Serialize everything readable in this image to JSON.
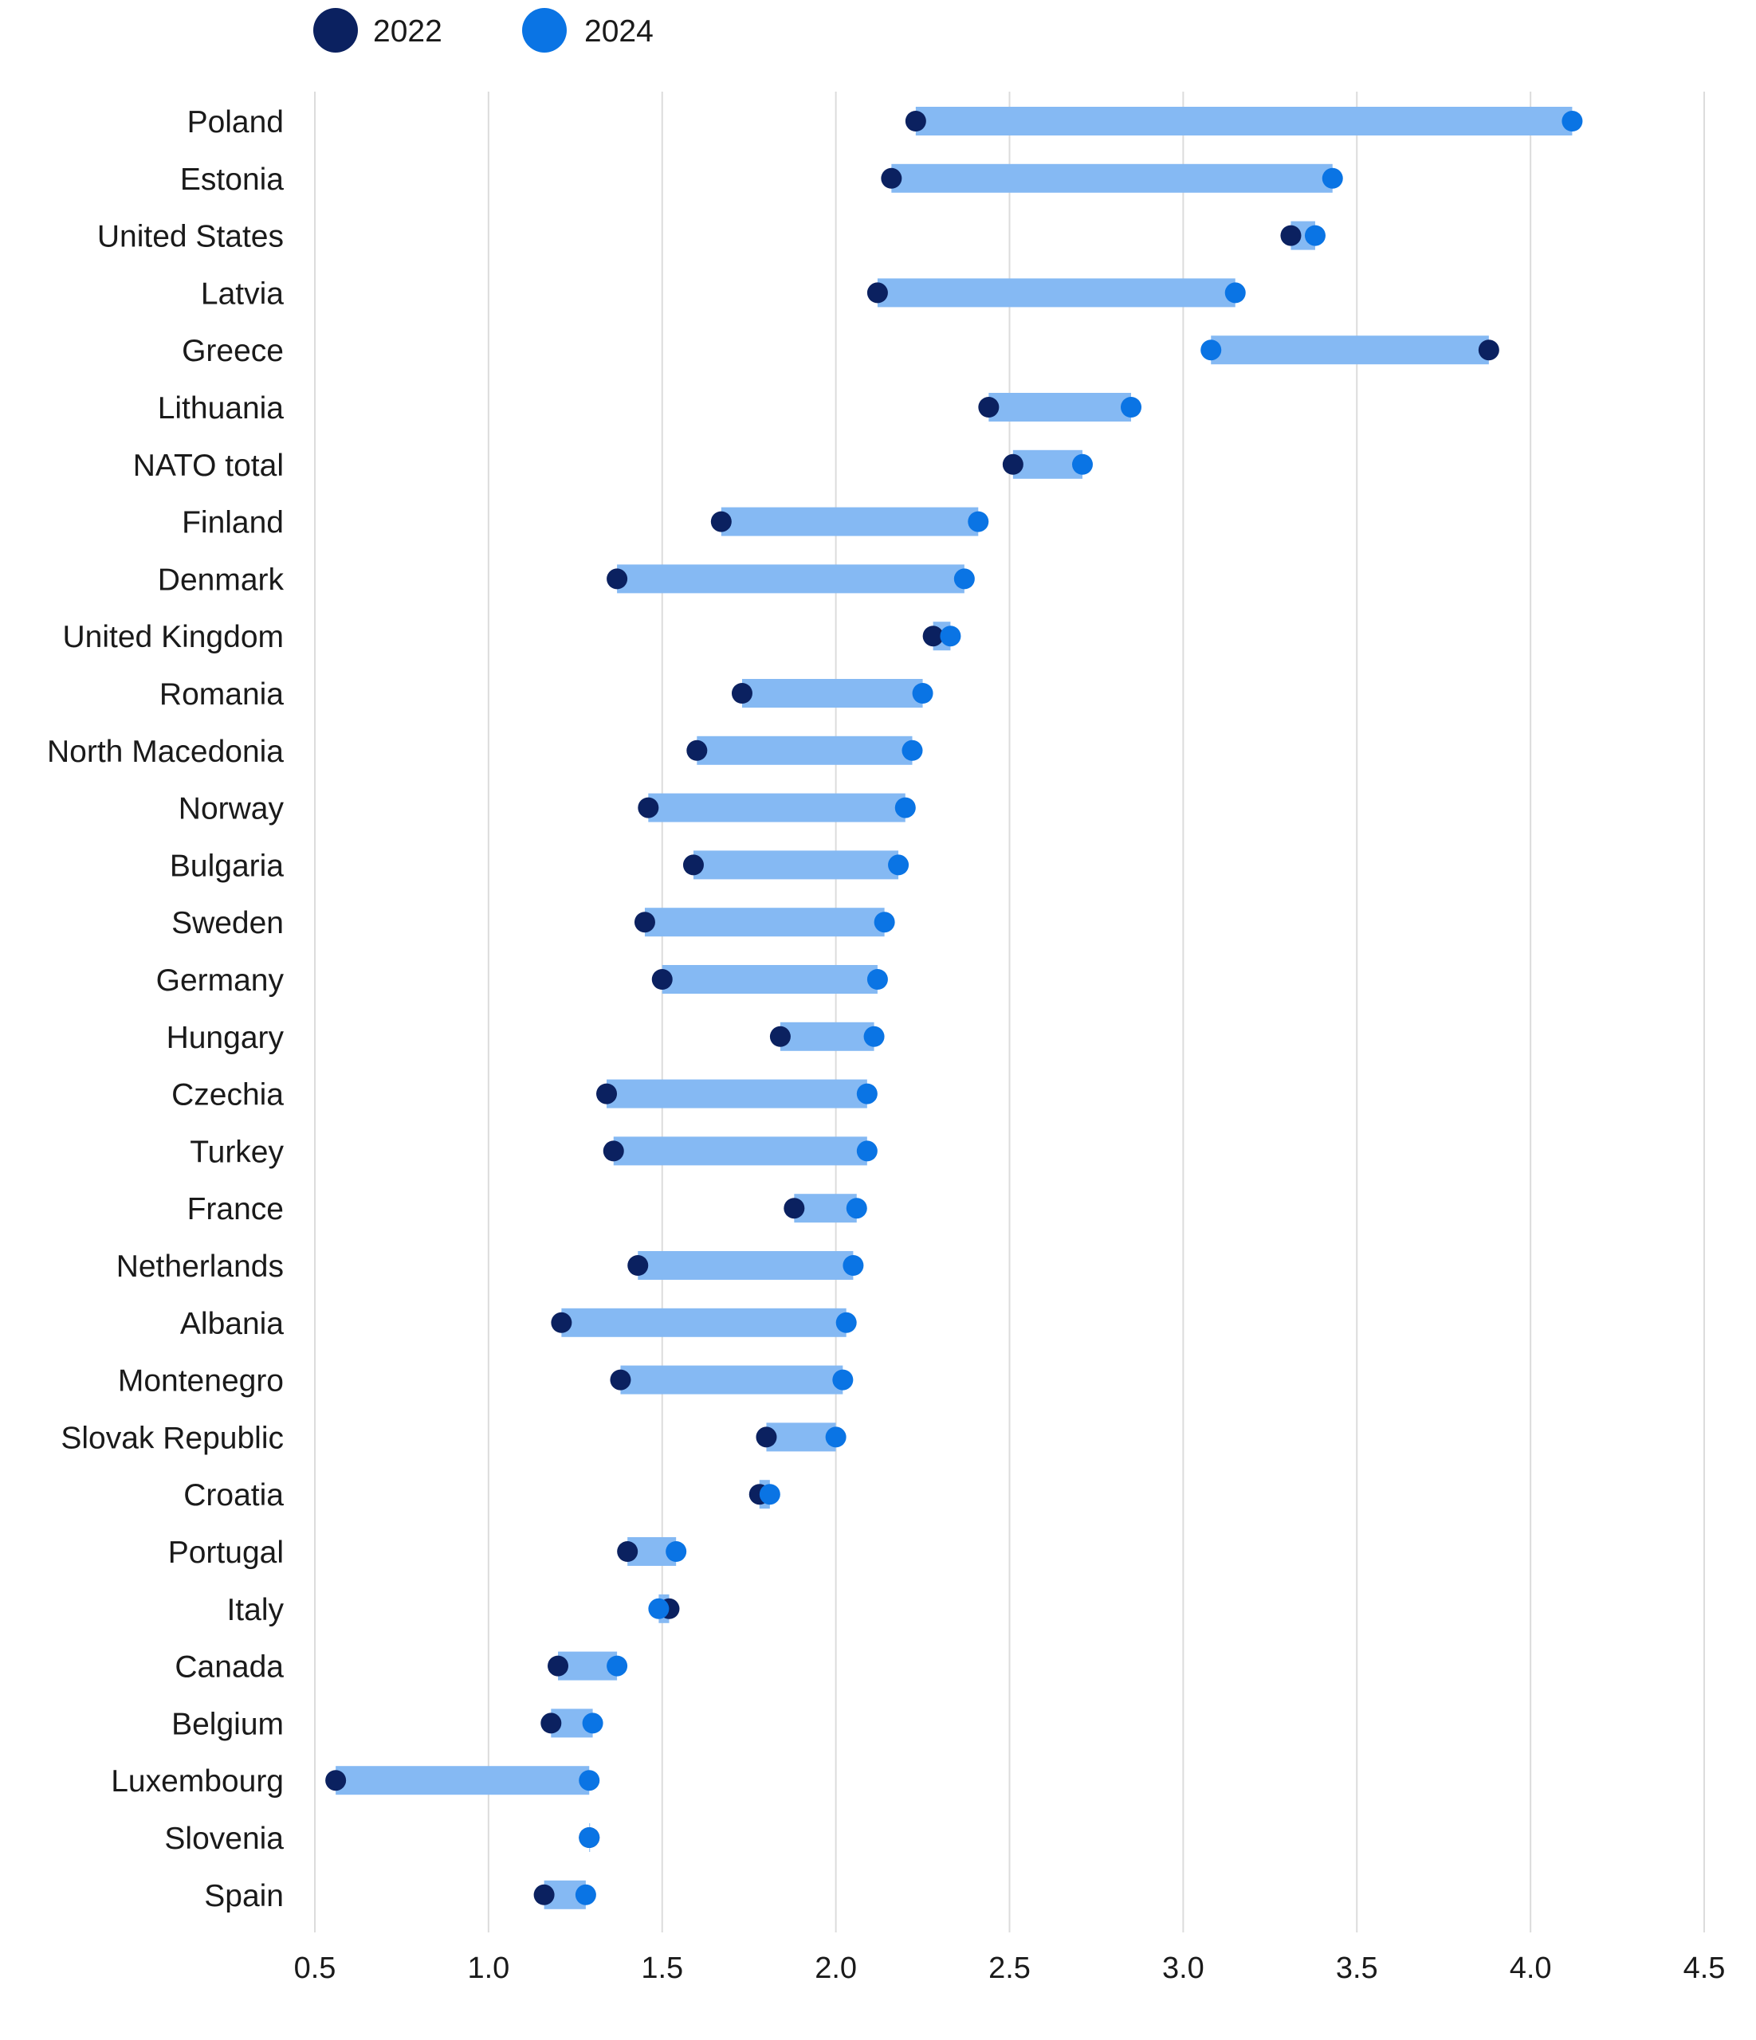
{
  "chart_data": {
    "type": "dumbbell",
    "title": "",
    "xlabel": "",
    "ylabel": "",
    "xlim": [
      0.5,
      4.5
    ],
    "xticks": [
      "0.5",
      "1.0",
      "1.5",
      "2.0",
      "2.5",
      "3.0",
      "3.5",
      "4.0",
      "4.5"
    ],
    "grid": true,
    "legend": {
      "placement": "top-left",
      "entries": [
        "2022",
        "2024"
      ]
    },
    "colors": {
      "2022": "#0b2160",
      "2024": "#0a74e4",
      "range": "#85b9f3",
      "grid": "#dcdcdc"
    },
    "categories": [
      "Poland",
      "Estonia",
      "United States",
      "Latvia",
      "Greece",
      "Lithuania",
      "NATO total",
      "Finland",
      "Denmark",
      "United Kingdom",
      "Romania",
      "North Macedonia",
      "Norway",
      "Bulgaria",
      "Sweden",
      "Germany",
      "Hungary",
      "Czechia",
      "Turkey",
      "France",
      "Netherlands",
      "Albania",
      "Montenegro",
      "Slovak Republic",
      "Croatia",
      "Portugal",
      "Italy",
      "Canada",
      "Belgium",
      "Luxembourg",
      "Slovenia",
      "Spain"
    ],
    "series": [
      {
        "name": "2022",
        "values": [
          2.23,
          2.16,
          3.31,
          2.12,
          3.88,
          2.44,
          2.51,
          1.67,
          1.37,
          2.28,
          1.73,
          1.6,
          1.46,
          1.59,
          1.45,
          1.5,
          1.84,
          1.34,
          1.36,
          1.88,
          1.43,
          1.21,
          1.38,
          1.8,
          1.78,
          1.4,
          1.52,
          1.2,
          1.18,
          0.56,
          1.29,
          1.16
        ]
      },
      {
        "name": "2024",
        "values": [
          4.12,
          3.43,
          3.38,
          3.15,
          3.08,
          2.85,
          2.71,
          2.41,
          2.37,
          2.33,
          2.25,
          2.22,
          2.2,
          2.18,
          2.14,
          2.12,
          2.11,
          2.09,
          2.09,
          2.06,
          2.05,
          2.03,
          2.02,
          2.0,
          1.81,
          1.54,
          1.49,
          1.37,
          1.3,
          1.29,
          1.29,
          1.28
        ]
      }
    ]
  }
}
